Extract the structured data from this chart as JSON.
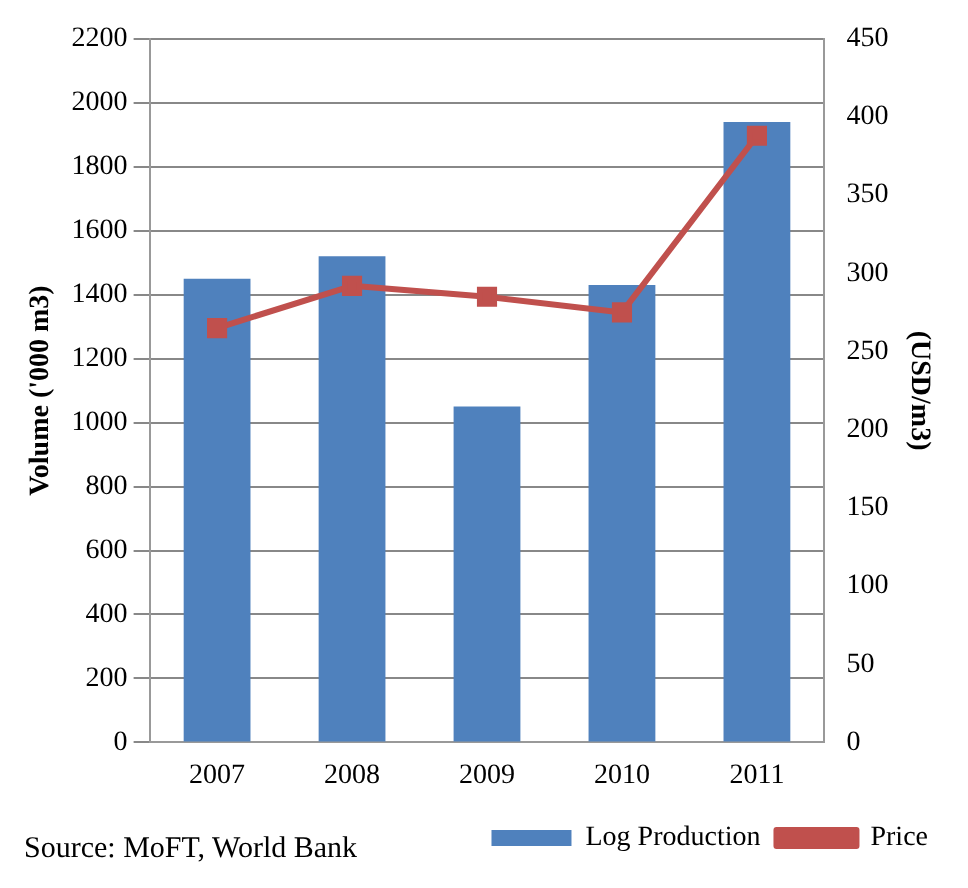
{
  "chart_data": {
    "type": "bar",
    "categories": [
      "2007",
      "2008",
      "2009",
      "2010",
      "2011"
    ],
    "series": [
      {
        "name": "Log Production",
        "color": "#4f81bd",
        "values": [
          1450,
          1520,
          1050,
          1430,
          1940
        ]
      },
      {
        "name": "Price",
        "type": "line",
        "axis": "y2",
        "color": "#c0504d",
        "values": [
          265,
          292,
          285,
          275,
          388
        ]
      }
    ],
    "ylabel": "Volume ('000 m3)",
    "y2label": "(USD/m3)",
    "ylim": [
      0,
      2200
    ],
    "yticks": [
      0,
      200,
      400,
      600,
      800,
      1000,
      1200,
      1400,
      1600,
      1800,
      2000,
      2200
    ],
    "y2lim": [
      0,
      450
    ],
    "y2ticks": [
      0,
      50,
      100,
      150,
      200,
      250,
      300,
      350,
      400,
      450
    ],
    "grid": "y",
    "legend": "bottom right",
    "marker": "square",
    "line_style": "solid",
    "annotations": [
      "Source: MoFT, World Bank"
    ]
  }
}
